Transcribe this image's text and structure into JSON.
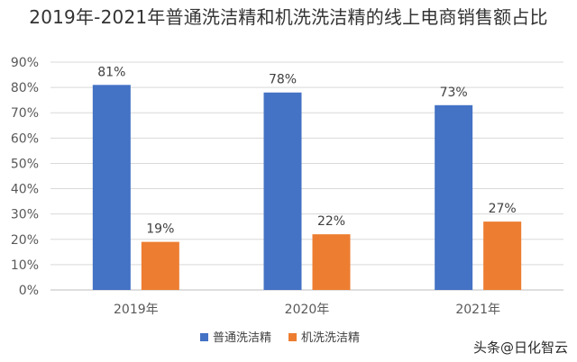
{
  "chart_data": {
    "type": "bar",
    "title": "2019年-2021年普通洗洁精和机洗洗洁精的线上电商销售额占比",
    "categories": [
      "2019年",
      "2020年",
      "2021年"
    ],
    "series": [
      {
        "name": "普通洗洁精",
        "values": [
          81,
          78,
          73
        ],
        "labels": [
          "81%",
          "78%",
          "73%"
        ],
        "color": "#4472c4"
      },
      {
        "name": "机洗洗洁精",
        "values": [
          19,
          22,
          27
        ],
        "labels": [
          "19%",
          "22%",
          "27%"
        ],
        "color": "#ed7d31"
      }
    ],
    "ylim": [
      0,
      90
    ],
    "yticks": [
      "0%",
      "10%",
      "20%",
      "30%",
      "40%",
      "50%",
      "60%",
      "70%",
      "80%",
      "90%"
    ],
    "xlabel": "",
    "ylabel": "",
    "grid": true,
    "legend": "bottom"
  },
  "watermark": "头条@日化智云"
}
